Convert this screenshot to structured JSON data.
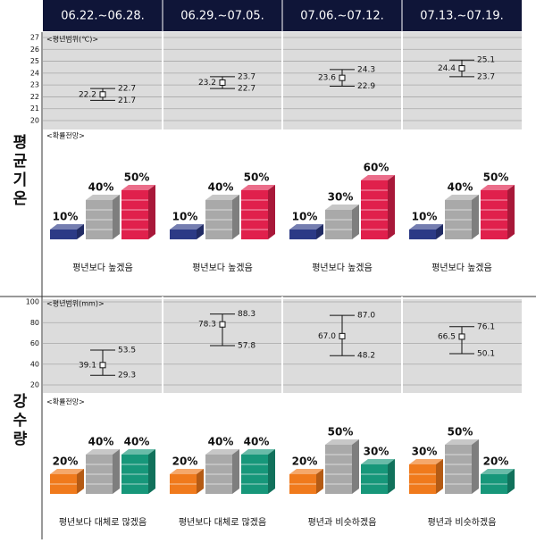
{
  "header": {
    "weeks": [
      "06.22.~06.28.",
      "06.29.~07.05.",
      "07.06.~07.12.",
      "07.13.~07.19."
    ]
  },
  "temperature": {
    "title": "평균기온",
    "range": {
      "type": "errorbar",
      "title": "<평년범위(℃)>",
      "ylim": [
        20,
        27
      ],
      "yticks": [
        20,
        21,
        22,
        23,
        24,
        25,
        26,
        27
      ],
      "mean": [
        22.2,
        23.2,
        23.6,
        24.4
      ],
      "upper": [
        22.7,
        23.7,
        24.3,
        25.1
      ],
      "lower": [
        21.7,
        22.7,
        22.9,
        23.7
      ]
    },
    "outlook": {
      "type": "stack",
      "title": "<확률전망>",
      "series": [
        {
          "color": "#2c3a86",
          "values": [
            10,
            10,
            10,
            10
          ],
          "value_labels": [
            "10%",
            "10%",
            "10%",
            "10%"
          ]
        },
        {
          "color": "#a9a9a9",
          "values": [
            40,
            40,
            30,
            40
          ],
          "value_labels": [
            "40%",
            "40%",
            "30%",
            "40%"
          ]
        },
        {
          "color": "#e0204c",
          "values": [
            50,
            50,
            60,
            50
          ],
          "value_labels": [
            "50%",
            "50%",
            "60%",
            "50%"
          ]
        }
      ],
      "labels": [
        "평년보다 높겠음",
        "평년보다 높겠음",
        "평년보다 높겠음",
        "평년보다 높겠음"
      ]
    }
  },
  "precipitation": {
    "title": "강수량",
    "range": {
      "type": "errorbar",
      "title": "<평년범위(mm)>",
      "ylim": [
        20,
        100
      ],
      "yticks": [
        20,
        40,
        60,
        80,
        100
      ],
      "mean": [
        39.1,
        78.3,
        67.0,
        66.5
      ],
      "upper": [
        53.5,
        88.3,
        87.0,
        76.1
      ],
      "lower": [
        29.3,
        57.8,
        48.2,
        50.1
      ],
      "mean_labels": [
        "39.1",
        "78.3",
        "67.0",
        "66.5"
      ],
      "upper_labels": [
        "53.5",
        "88.3",
        "87.0",
        "76.1"
      ],
      "lower_labels": [
        "29.3",
        "57.8",
        "48.2",
        "50.1"
      ]
    },
    "outlook": {
      "type": "stack",
      "title": "<확률전망>",
      "series": [
        {
          "color": "#f07a1c",
          "values": [
            20,
            20,
            20,
            30
          ],
          "value_labels": [
            "20%",
            "20%",
            "20%",
            "30%"
          ]
        },
        {
          "color": "#a9a9a9",
          "values": [
            40,
            40,
            50,
            50
          ],
          "value_labels": [
            "40%",
            "40%",
            "50%",
            "50%"
          ]
        },
        {
          "color": "#17977a",
          "values": [
            40,
            40,
            30,
            20
          ],
          "value_labels": [
            "40%",
            "40%",
            "30%",
            "20%"
          ]
        }
      ],
      "labels": [
        "평년보다 대체로 많겠음",
        "평년보다 대체로 많겠음",
        "평년과 비슷하겠음",
        "평년과 비슷하겠음"
      ]
    }
  }
}
